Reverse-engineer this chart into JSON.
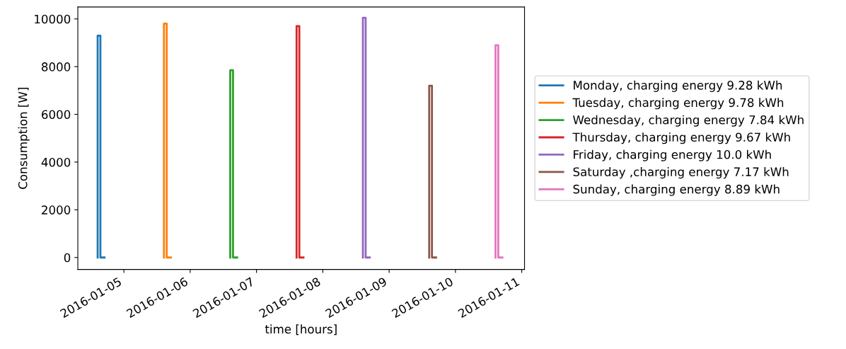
{
  "chart_data": {
    "type": "step",
    "xlabel": "time [hours]",
    "ylabel": "Consumption [W]",
    "xlim": [
      "2016-01-04T07:20",
      "2016-01-11T01:00"
    ],
    "ylim": [
      -500,
      10500
    ],
    "xticks": [
      {
        "value": "2016-01-05",
        "label": "2016-01-05"
      },
      {
        "value": "2016-01-06",
        "label": "2016-01-06"
      },
      {
        "value": "2016-01-07",
        "label": "2016-01-07"
      },
      {
        "value": "2016-01-08",
        "label": "2016-01-08"
      },
      {
        "value": "2016-01-09",
        "label": "2016-01-09"
      },
      {
        "value": "2016-01-10",
        "label": "2016-01-10"
      },
      {
        "value": "2016-01-11",
        "label": "2016-01-11"
      }
    ],
    "yticks": [
      0,
      2000,
      4000,
      6000,
      8000,
      10000
    ],
    "grid": false,
    "legend": "right",
    "series": [
      {
        "name": "Monday, charging energy 9.28 kWh",
        "color": "#1f77b4",
        "x": [
          "2016-01-04T14:30",
          "2016-01-04T14:30",
          "2016-01-04T15:30",
          "2016-01-04T17:00"
        ],
        "values": [
          0,
          9300,
          0,
          0
        ]
      },
      {
        "name": "Tuesday, charging energy 9.78 kWh",
        "color": "#ff7f0e",
        "x": [
          "2016-01-05T14:30",
          "2016-01-05T14:30",
          "2016-01-05T15:30",
          "2016-01-05T17:00"
        ],
        "values": [
          0,
          9800,
          0,
          0
        ]
      },
      {
        "name": "Wednesday, charging energy 7.84 kWh",
        "color": "#2ca02c",
        "x": [
          "2016-01-06T14:30",
          "2016-01-06T14:30",
          "2016-01-06T15:30",
          "2016-01-06T17:00"
        ],
        "values": [
          0,
          7850,
          0,
          0
        ]
      },
      {
        "name": "Thursday, charging energy 9.67 kWh",
        "color": "#d62728",
        "x": [
          "2016-01-07T14:30",
          "2016-01-07T14:30",
          "2016-01-07T15:30",
          "2016-01-07T17:00"
        ],
        "values": [
          0,
          9700,
          0,
          0
        ]
      },
      {
        "name": "Friday, charging energy 10.0 kWh",
        "color": "#9467bd",
        "x": [
          "2016-01-08T14:30",
          "2016-01-08T14:30",
          "2016-01-08T15:30",
          "2016-01-08T17:00"
        ],
        "values": [
          0,
          10050,
          0,
          0
        ]
      },
      {
        "name": "Saturday ,charging energy 7.17 kWh",
        "color": "#8c564b",
        "x": [
          "2016-01-09T14:30",
          "2016-01-09T14:30",
          "2016-01-09T15:30",
          "2016-01-09T17:00"
        ],
        "values": [
          0,
          7200,
          0,
          0
        ]
      },
      {
        "name": "Sunday, charging energy 8.89 kWh",
        "color": "#e377c2",
        "x": [
          "2016-01-10T14:30",
          "2016-01-10T14:30",
          "2016-01-10T15:30",
          "2016-01-10T17:00"
        ],
        "values": [
          0,
          8900,
          0,
          0
        ]
      }
    ]
  }
}
